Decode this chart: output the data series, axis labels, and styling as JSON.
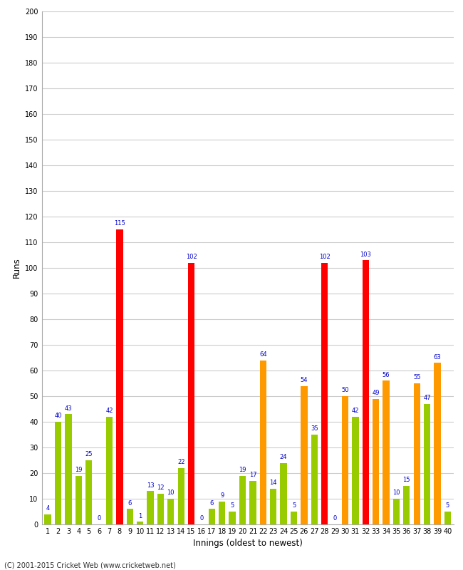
{
  "xlabel": "Innings (oldest to newest)",
  "ylabel": "Runs",
  "ylim": [
    0,
    200
  ],
  "yticks": [
    0,
    10,
    20,
    30,
    40,
    50,
    60,
    70,
    80,
    90,
    100,
    110,
    120,
    130,
    140,
    150,
    160,
    170,
    180,
    190,
    200
  ],
  "innings": [
    1,
    2,
    3,
    4,
    5,
    6,
    7,
    8,
    9,
    10,
    11,
    12,
    13,
    14,
    15,
    16,
    17,
    18,
    19,
    20,
    21,
    22,
    23,
    24,
    25,
    26,
    27,
    28,
    29,
    30,
    31,
    32,
    33,
    34,
    35,
    36,
    37,
    38,
    39,
    40
  ],
  "values": [
    4,
    40,
    43,
    19,
    25,
    0,
    42,
    115,
    6,
    1,
    13,
    12,
    10,
    22,
    102,
    0,
    6,
    9,
    5,
    19,
    17,
    64,
    14,
    24,
    5,
    54,
    35,
    102,
    0,
    50,
    42,
    103,
    49,
    56,
    10,
    15,
    55,
    47,
    63,
    5
  ],
  "colors": [
    "#99cc00",
    "#99cc00",
    "#99cc00",
    "#99cc00",
    "#99cc00",
    "#99cc00",
    "#99cc00",
    "#ff0000",
    "#99cc00",
    "#99cc00",
    "#99cc00",
    "#99cc00",
    "#99cc00",
    "#99cc00",
    "#ff0000",
    "#99cc00",
    "#99cc00",
    "#99cc00",
    "#99cc00",
    "#99cc00",
    "#99cc00",
    "#ff9900",
    "#99cc00",
    "#99cc00",
    "#99cc00",
    "#ff9900",
    "#99cc00",
    "#ff0000",
    "#99cc00",
    "#ff9900",
    "#99cc00",
    "#ff0000",
    "#ff9900",
    "#ff9900",
    "#99cc00",
    "#99cc00",
    "#ff9900",
    "#99cc00",
    "#ff9900",
    "#99cc00"
  ],
  "label_color": "#0000cc",
  "bg_color": "#ffffff",
  "grid_color": "#cccccc",
  "footer": "(C) 2001-2015 Cricket Web (www.cricketweb.net)",
  "bar_width": 0.65,
  "label_fontsize": 6.0,
  "tick_fontsize": 7.0,
  "axis_label_fontsize": 8.5,
  "footer_fontsize": 7.0
}
